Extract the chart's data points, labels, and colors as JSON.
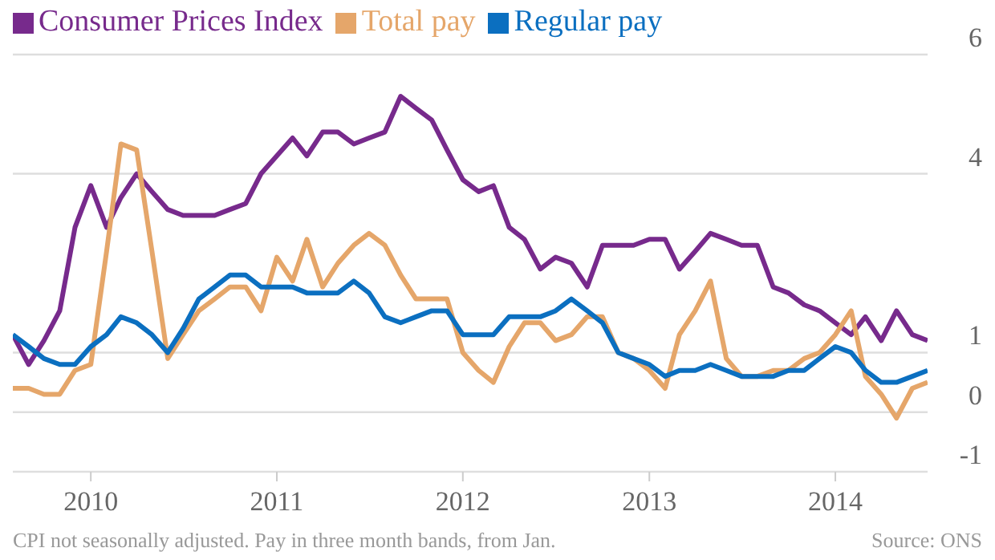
{
  "chart_data": {
    "type": "line",
    "x": [
      "2009-08",
      "2009-09",
      "2009-10",
      "2009-11",
      "2009-12",
      "2010-01",
      "2010-02",
      "2010-03",
      "2010-04",
      "2010-05",
      "2010-06",
      "2010-07",
      "2010-08",
      "2010-09",
      "2010-10",
      "2010-11",
      "2010-12",
      "2011-01",
      "2011-02",
      "2011-03",
      "2011-04",
      "2011-05",
      "2011-06",
      "2011-07",
      "2011-08",
      "2011-09",
      "2011-10",
      "2011-11",
      "2011-12",
      "2012-01",
      "2012-02",
      "2012-03",
      "2012-04",
      "2012-05",
      "2012-06",
      "2012-07",
      "2012-08",
      "2012-09",
      "2012-10",
      "2012-11",
      "2012-12",
      "2013-01",
      "2013-02",
      "2013-03",
      "2013-04",
      "2013-05",
      "2013-06",
      "2013-07",
      "2013-08",
      "2013-09",
      "2013-10",
      "2013-11",
      "2013-12",
      "2014-01",
      "2014-02",
      "2014-03",
      "2014-04",
      "2014-05",
      "2014-06",
      "2014-07"
    ],
    "series": [
      {
        "name": "Consumer Prices Index",
        "color": "#772a8c",
        "values": [
          1.3,
          0.8,
          1.2,
          1.7,
          3.1,
          3.8,
          3.1,
          3.6,
          4.0,
          3.7,
          3.4,
          3.3,
          3.3,
          3.3,
          3.4,
          3.5,
          4.0,
          4.3,
          4.6,
          4.3,
          4.7,
          4.7,
          4.5,
          4.6,
          4.7,
          5.3,
          5.1,
          4.9,
          4.4,
          3.9,
          3.7,
          3.8,
          3.1,
          2.9,
          2.4,
          2.6,
          2.5,
          2.1,
          2.8,
          2.8,
          2.8,
          2.9,
          2.9,
          2.4,
          2.7,
          3.0,
          2.9,
          2.8,
          2.8,
          2.1,
          2.0,
          1.8,
          1.7,
          1.5,
          1.3,
          1.6,
          1.2,
          1.7,
          1.3,
          1.2
        ]
      },
      {
        "name": "Total pay",
        "color": "#e5a66a",
        "values": [
          0.4,
          0.4,
          0.3,
          0.3,
          0.7,
          0.8,
          2.7,
          4.5,
          4.4,
          2.7,
          0.9,
          1.3,
          1.7,
          1.9,
          2.1,
          2.1,
          1.7,
          2.6,
          2.2,
          2.9,
          2.1,
          2.5,
          2.8,
          3.0,
          2.8,
          2.3,
          1.9,
          1.9,
          1.9,
          1.0,
          0.7,
          0.5,
          1.1,
          1.5,
          1.5,
          1.2,
          1.3,
          1.6,
          1.6,
          1.0,
          0.9,
          0.7,
          0.4,
          1.3,
          1.7,
          2.2,
          0.9,
          0.6,
          0.6,
          0.7,
          0.7,
          0.9,
          1.0,
          1.3,
          1.7,
          0.6,
          0.3,
          -0.1,
          0.4,
          0.5
        ]
      },
      {
        "name": "Regular pay",
        "color": "#0b6fc0",
        "values": [
          1.3,
          1.1,
          0.9,
          0.8,
          0.8,
          1.1,
          1.3,
          1.6,
          1.5,
          1.3,
          1.0,
          1.4,
          1.9,
          2.1,
          2.3,
          2.3,
          2.1,
          2.1,
          2.1,
          2.0,
          2.0,
          2.0,
          2.2,
          2.0,
          1.6,
          1.5,
          1.6,
          1.7,
          1.7,
          1.3,
          1.3,
          1.3,
          1.6,
          1.6,
          1.6,
          1.7,
          1.9,
          1.7,
          1.5,
          1.0,
          0.9,
          0.8,
          0.6,
          0.7,
          0.7,
          0.8,
          0.7,
          0.6,
          0.6,
          0.6,
          0.7,
          0.7,
          0.9,
          1.1,
          1.0,
          0.7,
          0.5,
          0.5,
          0.6,
          0.7
        ]
      }
    ],
    "ylim": [
      -1,
      6
    ],
    "yticks": [
      6,
      4,
      1,
      0,
      -1
    ],
    "xlim": [
      "2009-08",
      "2014-07"
    ],
    "xticks": [
      {
        "value": "2010-01",
        "label": "2010"
      },
      {
        "value": "2011-01",
        "label": "2011"
      },
      {
        "value": "2012-01",
        "label": "2012"
      },
      {
        "value": "2013-01",
        "label": "2013"
      },
      {
        "value": "2014-01",
        "label": "2014"
      }
    ],
    "grid": "y",
    "legend": "top left",
    "annotations": [
      "CPI not seasonally adjusted. Pay in three month bands, from Jan.",
      "Source: ONS"
    ]
  }
}
